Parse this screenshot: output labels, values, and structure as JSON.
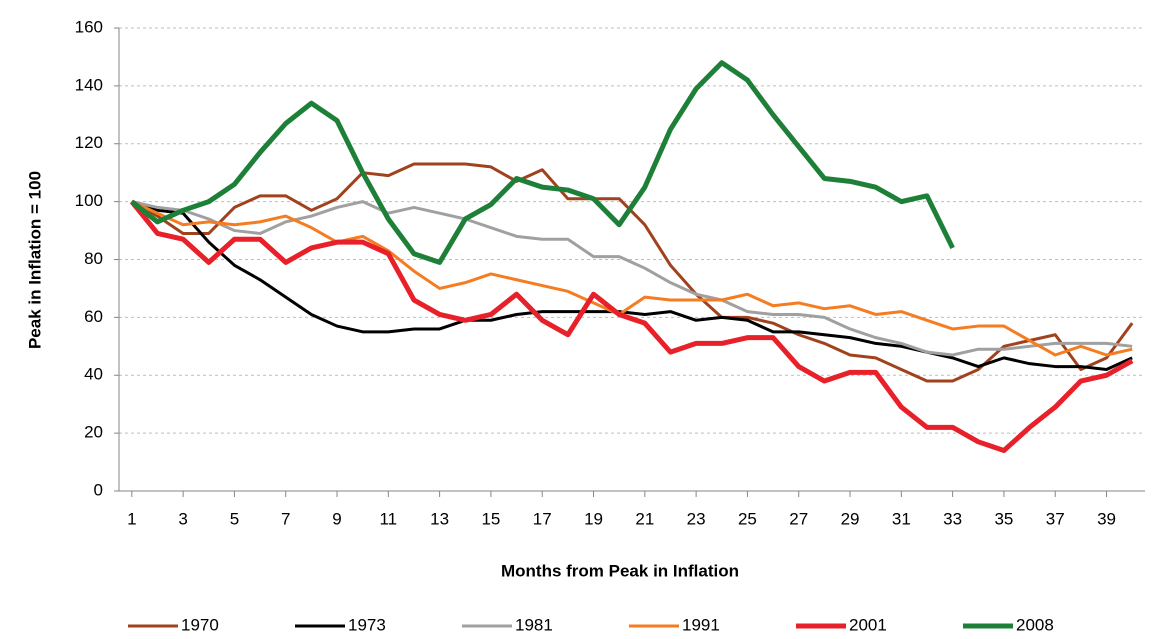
{
  "chart_data": {
    "type": "line",
    "x_label": "Months from Peak in Inflation",
    "y_label": "Peak in Inflation = 100",
    "x": [
      1,
      2,
      3,
      4,
      5,
      6,
      7,
      8,
      9,
      10,
      11,
      12,
      13,
      14,
      15,
      16,
      17,
      18,
      19,
      20,
      21,
      22,
      23,
      24,
      25,
      26,
      27,
      28,
      29,
      30,
      31,
      32,
      33,
      34,
      35,
      36,
      37,
      38,
      39,
      40
    ],
    "xlim": [
      0.5,
      40.5
    ],
    "xticks": [
      1,
      3,
      5,
      7,
      9,
      11,
      13,
      15,
      17,
      19,
      21,
      23,
      25,
      27,
      29,
      31,
      33,
      35,
      37,
      39
    ],
    "ylim": [
      0,
      160
    ],
    "yticks": [
      0,
      20,
      40,
      60,
      80,
      100,
      120,
      140,
      160
    ],
    "grid": true,
    "legend": "bottom",
    "series": [
      {
        "name": "1970",
        "color": "#a0421e",
        "line_width": 3,
        "values": [
          100,
          95,
          89,
          89,
          98,
          102,
          102,
          97,
          101,
          110,
          109,
          113,
          113,
          113,
          112,
          107,
          111,
          101,
          101,
          101,
          92,
          78,
          68,
          60,
          60,
          58,
          54,
          51,
          47,
          46,
          42,
          38,
          38,
          42,
          50,
          52,
          54,
          42,
          46,
          58
        ]
      },
      {
        "name": "1973",
        "color": "#000000",
        "line_width": 3,
        "values": [
          100,
          97,
          96,
          86,
          78,
          73,
          67,
          61,
          57,
          55,
          55,
          56,
          56,
          59,
          59,
          61,
          62,
          62,
          62,
          62,
          61,
          62,
          59,
          60,
          59,
          55,
          55,
          54,
          53,
          51,
          50,
          48,
          46,
          43,
          46,
          44,
          43,
          43,
          42,
          46
        ]
      },
      {
        "name": "1981",
        "color": "#a0a0a0",
        "line_width": 3,
        "values": [
          100,
          98,
          97,
          94,
          90,
          89,
          93,
          95,
          98,
          100,
          96,
          98,
          96,
          94,
          91,
          88,
          87,
          87,
          81,
          81,
          77,
          72,
          68,
          66,
          62,
          61,
          61,
          60,
          56,
          53,
          51,
          48,
          47,
          49,
          49,
          50,
          51,
          51,
          51,
          50
        ]
      },
      {
        "name": "1991",
        "color": "#f57c20",
        "line_width": 3,
        "values": [
          100,
          96,
          92,
          93,
          92,
          93,
          95,
          91,
          86,
          88,
          83,
          76,
          70,
          72,
          75,
          73,
          71,
          69,
          65,
          61,
          67,
          66,
          66,
          66,
          68,
          64,
          65,
          63,
          64,
          61,
          62,
          59,
          56,
          57,
          57,
          52,
          47,
          50,
          47,
          49
        ]
      },
      {
        "name": "2001",
        "color": "#e8202a",
        "line_width": 5,
        "values": [
          100,
          89,
          87,
          79,
          87,
          87,
          79,
          84,
          86,
          86,
          82,
          66,
          61,
          59,
          61,
          68,
          59,
          54,
          68,
          61,
          58,
          48,
          51,
          51,
          53,
          53,
          43,
          38,
          41,
          41,
          29,
          22,
          22,
          17,
          14,
          22,
          29,
          38,
          40,
          45
        ]
      },
      {
        "name": "2008",
        "color": "#1e8038",
        "line_width": 5,
        "values": [
          100,
          93,
          97,
          100,
          106,
          117,
          127,
          134,
          128,
          110,
          94,
          82,
          79,
          94,
          99,
          108,
          105,
          104,
          101,
          92,
          105,
          125,
          139,
          148,
          142,
          130,
          119,
          108,
          107,
          105,
          100,
          102,
          84,
          null,
          null,
          null,
          null,
          null,
          null,
          null
        ]
      }
    ]
  }
}
